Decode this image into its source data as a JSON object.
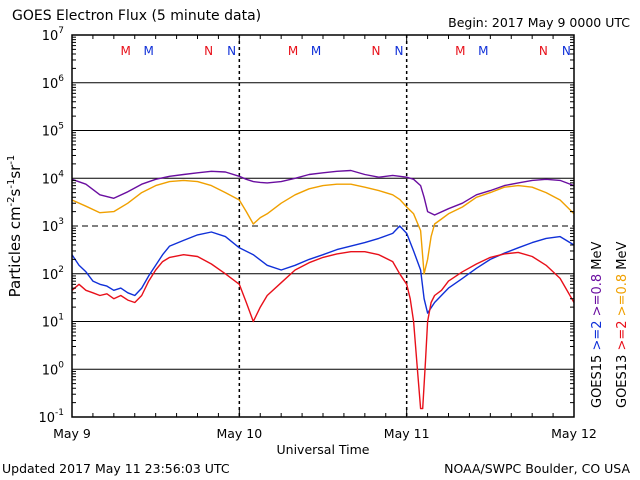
{
  "header": {
    "title": "GOES Electron Flux (5 minute data)",
    "begin": "Begin: 2017 May 9 0000 UTC"
  },
  "footer": {
    "updated": "Updated 2017 May 11 23:56:03 UTC",
    "credit": "NOAA/SWPC Boulder, CO USA"
  },
  "colors": {
    "goes13_ge2": "#e8101a",
    "goes15_ge2": "#1030d8",
    "goes13_ge08": "#f0a000",
    "goes15_ge08": "#6a0ea0",
    "axis": "#000000"
  },
  "chart_data": {
    "type": "line",
    "title": "GOES Electron Flux (5 minute data)",
    "xlabel": "Universal Time",
    "ylabel_base": "Particles cm",
    "ylabel_exp1": "-2",
    "ylabel_mid": "s",
    "ylabel_exp2": "-1",
    "ylabel_mid2": "sr",
    "ylabel_exp3": "-1",
    "yscale": "log",
    "ylim": [
      0.1,
      10000000
    ],
    "xlim_hours": [
      0,
      72
    ],
    "x_ticks": [
      "May 9",
      "May 10",
      "May 11",
      "May 12"
    ],
    "y_ticks": [
      {
        "base": "10",
        "exp": "7"
      },
      {
        "base": "10",
        "exp": "6"
      },
      {
        "base": "10",
        "exp": "5"
      },
      {
        "base": "10",
        "exp": "4"
      },
      {
        "base": "10",
        "exp": "3"
      },
      {
        "base": "10",
        "exp": "2"
      },
      {
        "base": "10",
        "exp": "1"
      },
      {
        "base": "10",
        "exp": "0"
      },
      {
        "base": "10",
        "exp": "-1"
      }
    ],
    "grid": "solid horizontal lines at each decade, dashed line at 10^3, dashed vertical day separators",
    "markers": [
      {
        "label": "M",
        "hour": 7.7,
        "color": "#e8101a"
      },
      {
        "label": "M",
        "hour": 11.0,
        "color": "#1030d8"
      },
      {
        "label": "N",
        "hour": 19.6,
        "color": "#e8101a"
      },
      {
        "label": "N",
        "hour": 22.9,
        "color": "#1030d8"
      },
      {
        "label": "M",
        "hour": 31.7,
        "color": "#e8101a"
      },
      {
        "label": "M",
        "hour": 35.0,
        "color": "#1030d8"
      },
      {
        "label": "N",
        "hour": 43.6,
        "color": "#e8101a"
      },
      {
        "label": "N",
        "hour": 46.9,
        "color": "#1030d8"
      },
      {
        "label": "M",
        "hour": 55.7,
        "color": "#e8101a"
      },
      {
        "label": "M",
        "hour": 59.0,
        "color": "#1030d8"
      },
      {
        "label": "N",
        "hour": 67.6,
        "color": "#e8101a"
      },
      {
        "label": "N",
        "hour": 70.9,
        "color": "#1030d8"
      }
    ],
    "legend_right": [
      {
        "sat": "GOES15",
        "thr_ge2": ">=2",
        "thr_ge08": ">=0.8",
        "unit": "MeV",
        "color_ge2": "#1030d8",
        "color_ge08": "#6a0ea0"
      },
      {
        "sat": "GOES13",
        "thr_ge2": ">=2",
        "thr_ge08": ">=0.8",
        "unit": "MeV",
        "color_ge2": "#e8101a",
        "color_ge08": "#f0a000"
      }
    ],
    "series": [
      {
        "name": "GOES15 >=0.8 MeV",
        "color": "#6a0ea0",
        "x": [
          0,
          2,
          4,
          6,
          8,
          10,
          12,
          14,
          16,
          18,
          20,
          22,
          24,
          25,
          26,
          27,
          28,
          30,
          32,
          34,
          36,
          38,
          40,
          42,
          44,
          46,
          47,
          48,
          49,
          50,
          50.5,
          51,
          52,
          54,
          56,
          58,
          60,
          62,
          64,
          66,
          68,
          70,
          72
        ],
        "y": [
          9500,
          7500,
          4500,
          3800,
          5200,
          7500,
          9500,
          11000,
          12000,
          13000,
          14000,
          13500,
          11000,
          9500,
          8500,
          8200,
          8000,
          8500,
          10000,
          12000,
          13000,
          14000,
          14500,
          12000,
          10500,
          11500,
          11000,
          10500,
          9500,
          7000,
          4000,
          2000,
          1700,
          2300,
          3000,
          4500,
          5500,
          7000,
          8000,
          9000,
          9500,
          9000,
          7000
        ]
      },
      {
        "name": "GOES13 >=0.8 MeV",
        "color": "#f0a000",
        "x": [
          0,
          2,
          4,
          6,
          8,
          10,
          12,
          14,
          16,
          18,
          20,
          22,
          24,
          25,
          26,
          27,
          28,
          30,
          32,
          34,
          36,
          38,
          40,
          42,
          44,
          46,
          47,
          48,
          49,
          50,
          50.5,
          51,
          51.5,
          52,
          53,
          54,
          56,
          58,
          60,
          62,
          64,
          66,
          68,
          70,
          72
        ],
        "y": [
          3500,
          2600,
          1900,
          2000,
          3000,
          5000,
          7000,
          8500,
          9000,
          8500,
          7000,
          5000,
          3500,
          2000,
          1100,
          1500,
          1800,
          3000,
          4500,
          6000,
          7000,
          7500,
          7500,
          6500,
          5500,
          4500,
          3600,
          2500,
          1800,
          800,
          100,
          200,
          600,
          1100,
          1400,
          1800,
          2500,
          4000,
          5000,
          6500,
          7000,
          6500,
          5000,
          3500,
          1800
        ]
      },
      {
        "name": "GOES15 >=2 MeV",
        "color": "#1030d8",
        "x": [
          0,
          1,
          2,
          3,
          4,
          5,
          6,
          7,
          8,
          9,
          10,
          11,
          12,
          13,
          14,
          16,
          18,
          20,
          22,
          24,
          26,
          28,
          30,
          32,
          34,
          36,
          38,
          40,
          42,
          44,
          46,
          47,
          48,
          49,
          50,
          50.5,
          51,
          52,
          54,
          56,
          58,
          60,
          62,
          64,
          66,
          68,
          70,
          72
        ],
        "y": [
          250,
          150,
          110,
          70,
          60,
          55,
          45,
          50,
          40,
          35,
          50,
          90,
          150,
          250,
          380,
          500,
          650,
          750,
          600,
          350,
          250,
          150,
          120,
          150,
          200,
          250,
          320,
          380,
          450,
          550,
          700,
          1000,
          700,
          300,
          120,
          30,
          15,
          25,
          50,
          80,
          130,
          200,
          270,
          350,
          450,
          550,
          600,
          400
        ]
      },
      {
        "name": "GOES13 >=2 MeV",
        "color": "#e8101a",
        "x": [
          0,
          1,
          2,
          3,
          4,
          5,
          6,
          7,
          8,
          9,
          10,
          11,
          12,
          13,
          14,
          16,
          18,
          20,
          22,
          24,
          25,
          26,
          27,
          28,
          30,
          32,
          34,
          36,
          38,
          40,
          42,
          44,
          46,
          47,
          48,
          48.5,
          49,
          49.5,
          50,
          50.3,
          50.7,
          51,
          51.5,
          52,
          53,
          54,
          56,
          58,
          60,
          62,
          64,
          66,
          68,
          70,
          72
        ],
        "y": [
          45,
          60,
          45,
          40,
          35,
          38,
          30,
          35,
          28,
          25,
          35,
          70,
          120,
          180,
          220,
          250,
          230,
          160,
          100,
          60,
          25,
          10,
          20,
          35,
          65,
          120,
          170,
          220,
          260,
          290,
          290,
          250,
          180,
          100,
          60,
          30,
          10,
          1.2,
          0.15,
          0.15,
          1.5,
          10,
          25,
          35,
          45,
          70,
          110,
          160,
          220,
          260,
          280,
          230,
          150,
          80,
          25
        ]
      }
    ]
  }
}
